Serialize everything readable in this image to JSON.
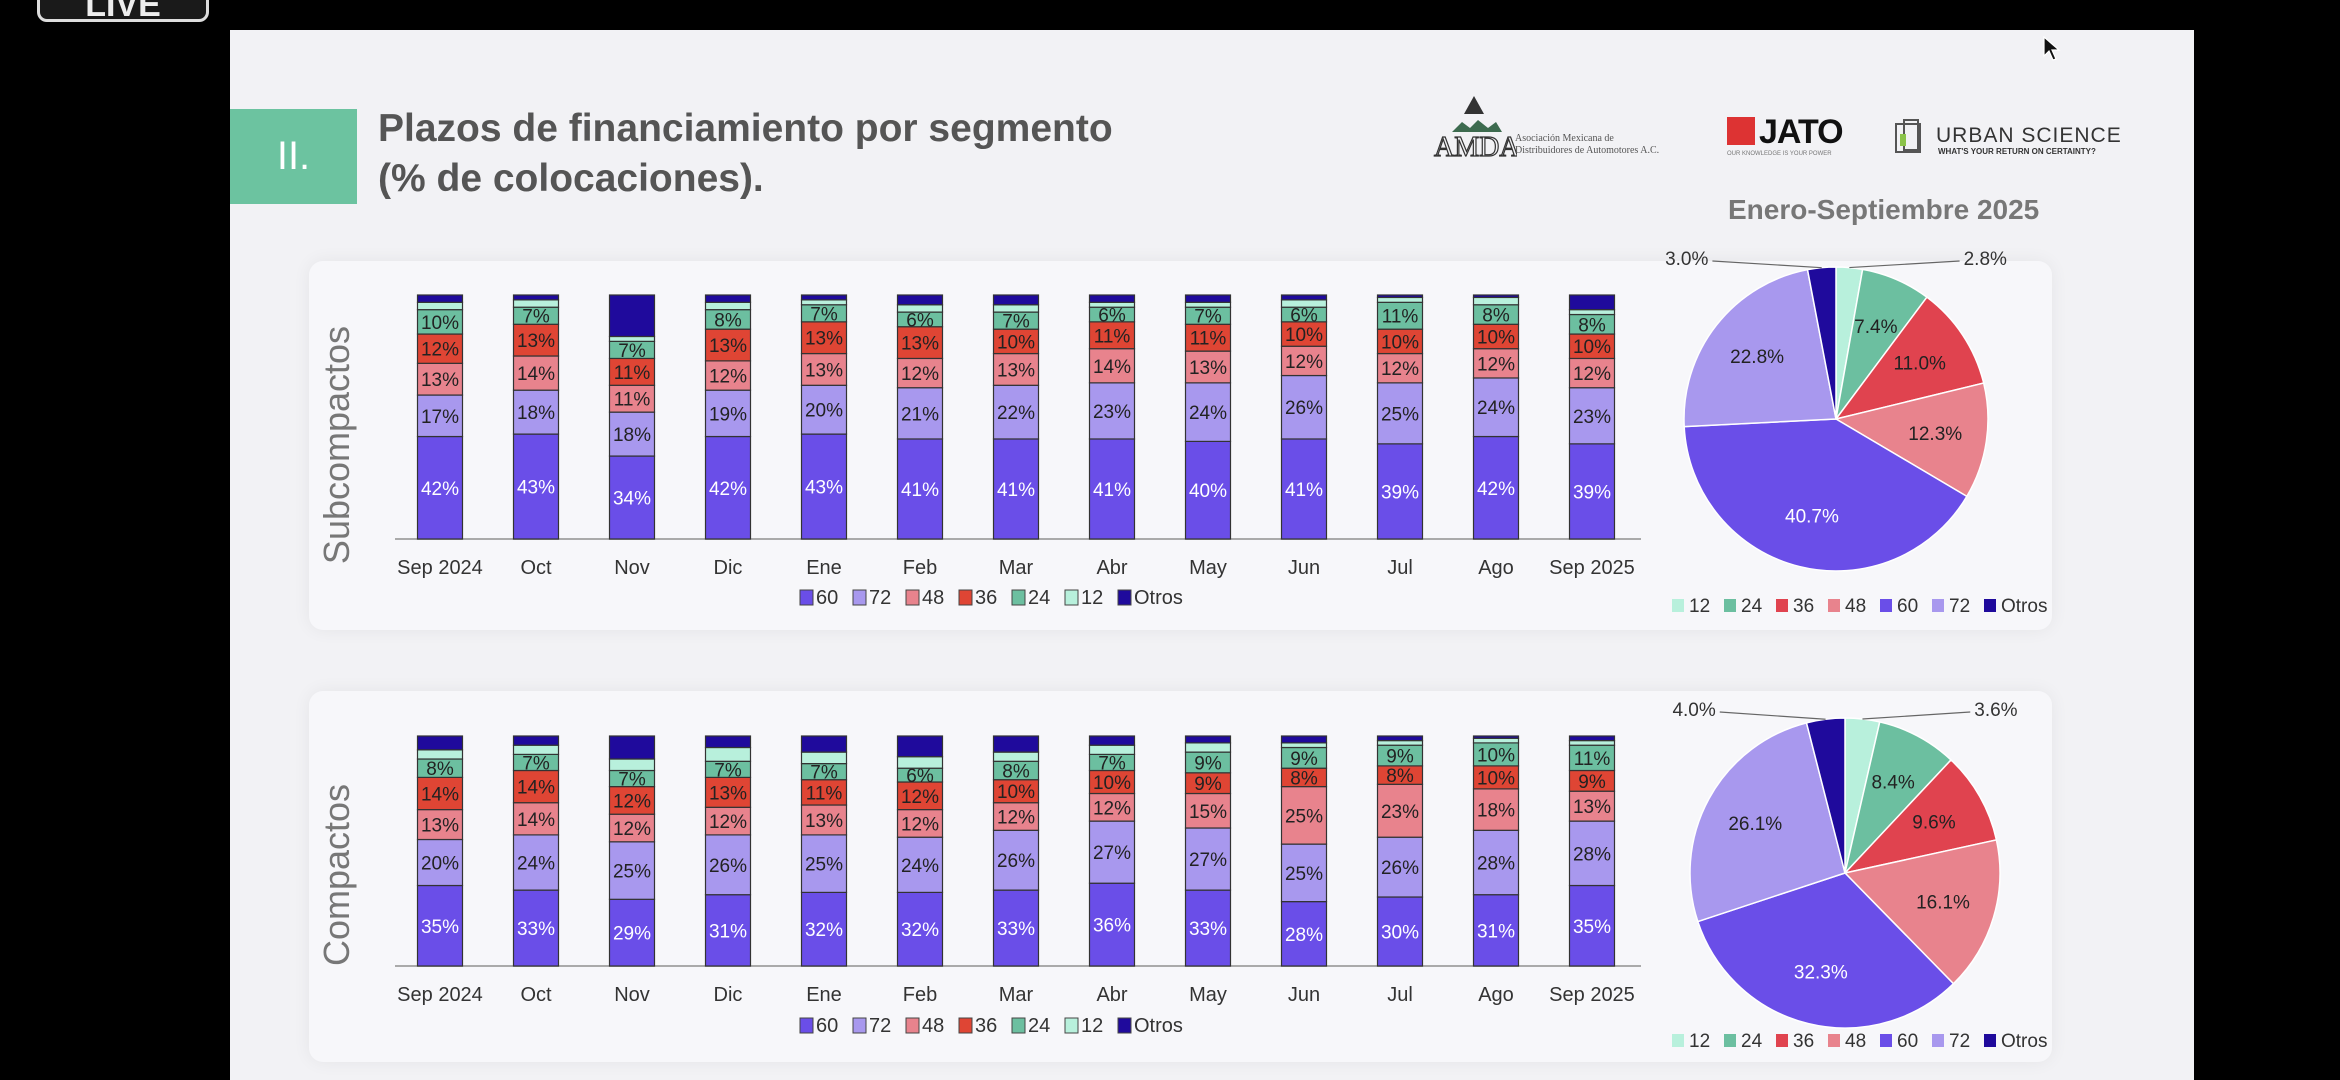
{
  "overlay": {
    "live_label": "LIVE"
  },
  "slide": {
    "section_number": "II.",
    "title_line1": "Plazos de financiamiento por segmento",
    "title_line2": "(% de colocaciones).",
    "period": "Enero-Septiembre  2025",
    "logos": {
      "amda": "AMDA",
      "amda_line1": "Asociación Mexicana de",
      "amda_line2": "Distribuidores de Automotores A.C.",
      "jato": "JATO",
      "jato_tagline": "OUR KNOWLEDGE IS YOUR POWER",
      "urban_science": "URBAN SCIENCE",
      "urban_science_tagline": "WHAT'S YOUR RETURN ON CERTAINTY?"
    }
  },
  "colors": {
    "60": "#6a4ee8",
    "72": "#a898ee",
    "48": "#e8838d",
    "36": "#df4534",
    "24": "#6cbfa0",
    "12": "#b8f0dc",
    "Otros": "#1f0a9c",
    "pie36": "#e0434f"
  },
  "chart_data": [
    {
      "type": "bar",
      "stacked": true,
      "segment": "Subcompactos",
      "ylabel": "Subcompactos",
      "categories": [
        "Sep 2024",
        "Oct",
        "Nov",
        "Dic",
        "Ene",
        "Feb",
        "Mar",
        "Abr",
        "May",
        "Jun",
        "Jul",
        "Ago",
        "Sep 2025"
      ],
      "legend": [
        "60",
        "72",
        "48",
        "36",
        "24",
        "12",
        "Otros"
      ],
      "ylim": [
        0,
        100
      ],
      "series": [
        {
          "name": "60",
          "labeled": true,
          "values": [
            42,
            43,
            34,
            42,
            43,
            41,
            41,
            41,
            40,
            41,
            39,
            42,
            39
          ]
        },
        {
          "name": "72",
          "labeled": true,
          "values": [
            17,
            18,
            18,
            19,
            20,
            21,
            22,
            23,
            24,
            26,
            25,
            24,
            23
          ]
        },
        {
          "name": "48",
          "labeled": true,
          "values": [
            13,
            14,
            11,
            12,
            13,
            12,
            13,
            14,
            13,
            12,
            12,
            12,
            12
          ]
        },
        {
          "name": "36",
          "labeled": true,
          "values": [
            12,
            13,
            11,
            13,
            13,
            13,
            10,
            11,
            11,
            10,
            10,
            10,
            10
          ]
        },
        {
          "name": "24",
          "labeled": true,
          "values": [
            10,
            7,
            7,
            8,
            7,
            6,
            7,
            6,
            7,
            6,
            11,
            8,
            8
          ]
        },
        {
          "name": "12",
          "labeled": false,
          "values": [
            3,
            3,
            2,
            3,
            2,
            3,
            3,
            2,
            2,
            3,
            2,
            3,
            2
          ]
        },
        {
          "name": "Otros",
          "labeled": false,
          "values": [
            3,
            2,
            17,
            3,
            2,
            4,
            4,
            3,
            3,
            2,
            1,
            1,
            6
          ]
        }
      ]
    },
    {
      "type": "pie",
      "segment": "Subcompactos",
      "title": "Enero-Septiembre  2025",
      "legend": [
        "12",
        "24",
        "36",
        "48",
        "60",
        "72",
        "Otros"
      ],
      "labels": [
        "12",
        "24",
        "36",
        "48",
        "60",
        "72",
        "Otros"
      ],
      "values": [
        2.8,
        7.4,
        11.0,
        12.3,
        40.7,
        22.8,
        3.0
      ],
      "value_labels": [
        "2.8%",
        "7.4%",
        "11.0%",
        "12.3%",
        "40.7%",
        "22.8%",
        "3.0%"
      ]
    },
    {
      "type": "bar",
      "stacked": true,
      "segment": "Compactos",
      "ylabel": "Compactos",
      "categories": [
        "Sep 2024",
        "Oct",
        "Nov",
        "Dic",
        "Ene",
        "Feb",
        "Mar",
        "Abr",
        "May",
        "Jun",
        "Jul",
        "Ago",
        "Sep 2025"
      ],
      "legend": [
        "60",
        "72",
        "48",
        "36",
        "24",
        "12",
        "Otros"
      ],
      "ylim": [
        0,
        100
      ],
      "series": [
        {
          "name": "60",
          "labeled": true,
          "values": [
            35,
            33,
            29,
            31,
            32,
            32,
            33,
            36,
            33,
            28,
            30,
            31,
            35
          ]
        },
        {
          "name": "72",
          "labeled": true,
          "values": [
            20,
            24,
            25,
            26,
            25,
            24,
            26,
            27,
            27,
            25,
            26,
            28,
            28
          ]
        },
        {
          "name": "48",
          "labeled": true,
          "values": [
            13,
            14,
            12,
            12,
            13,
            12,
            12,
            12,
            15,
            25,
            23,
            18,
            13
          ]
        },
        {
          "name": "36",
          "labeled": true,
          "values": [
            14,
            14,
            12,
            13,
            11,
            12,
            10,
            10,
            9,
            8,
            8,
            10,
            9
          ]
        },
        {
          "name": "24",
          "labeled": true,
          "values": [
            8,
            7,
            7,
            7,
            7,
            6,
            8,
            7,
            9,
            9,
            9,
            10,
            11
          ]
        },
        {
          "name": "12",
          "labeled": false,
          "values": [
            4,
            4,
            5,
            6,
            5,
            5,
            4,
            4,
            4,
            2,
            2,
            2,
            2
          ]
        },
        {
          "name": "Otros",
          "labeled": false,
          "values": [
            6,
            4,
            10,
            5,
            7,
            9,
            7,
            4,
            3,
            3,
            2,
            1,
            2
          ]
        }
      ]
    },
    {
      "type": "pie",
      "segment": "Compactos",
      "legend": [
        "12",
        "24",
        "36",
        "48",
        "60",
        "72",
        "Otros"
      ],
      "labels": [
        "12",
        "24",
        "36",
        "48",
        "60",
        "72",
        "Otros"
      ],
      "values": [
        3.6,
        8.4,
        9.6,
        16.1,
        32.3,
        26.1,
        4.0
      ],
      "value_labels": [
        "3.6%",
        "8.4%",
        "9.6%",
        "16.1%",
        "32.3%",
        "26.1%",
        "4.0%"
      ]
    }
  ]
}
